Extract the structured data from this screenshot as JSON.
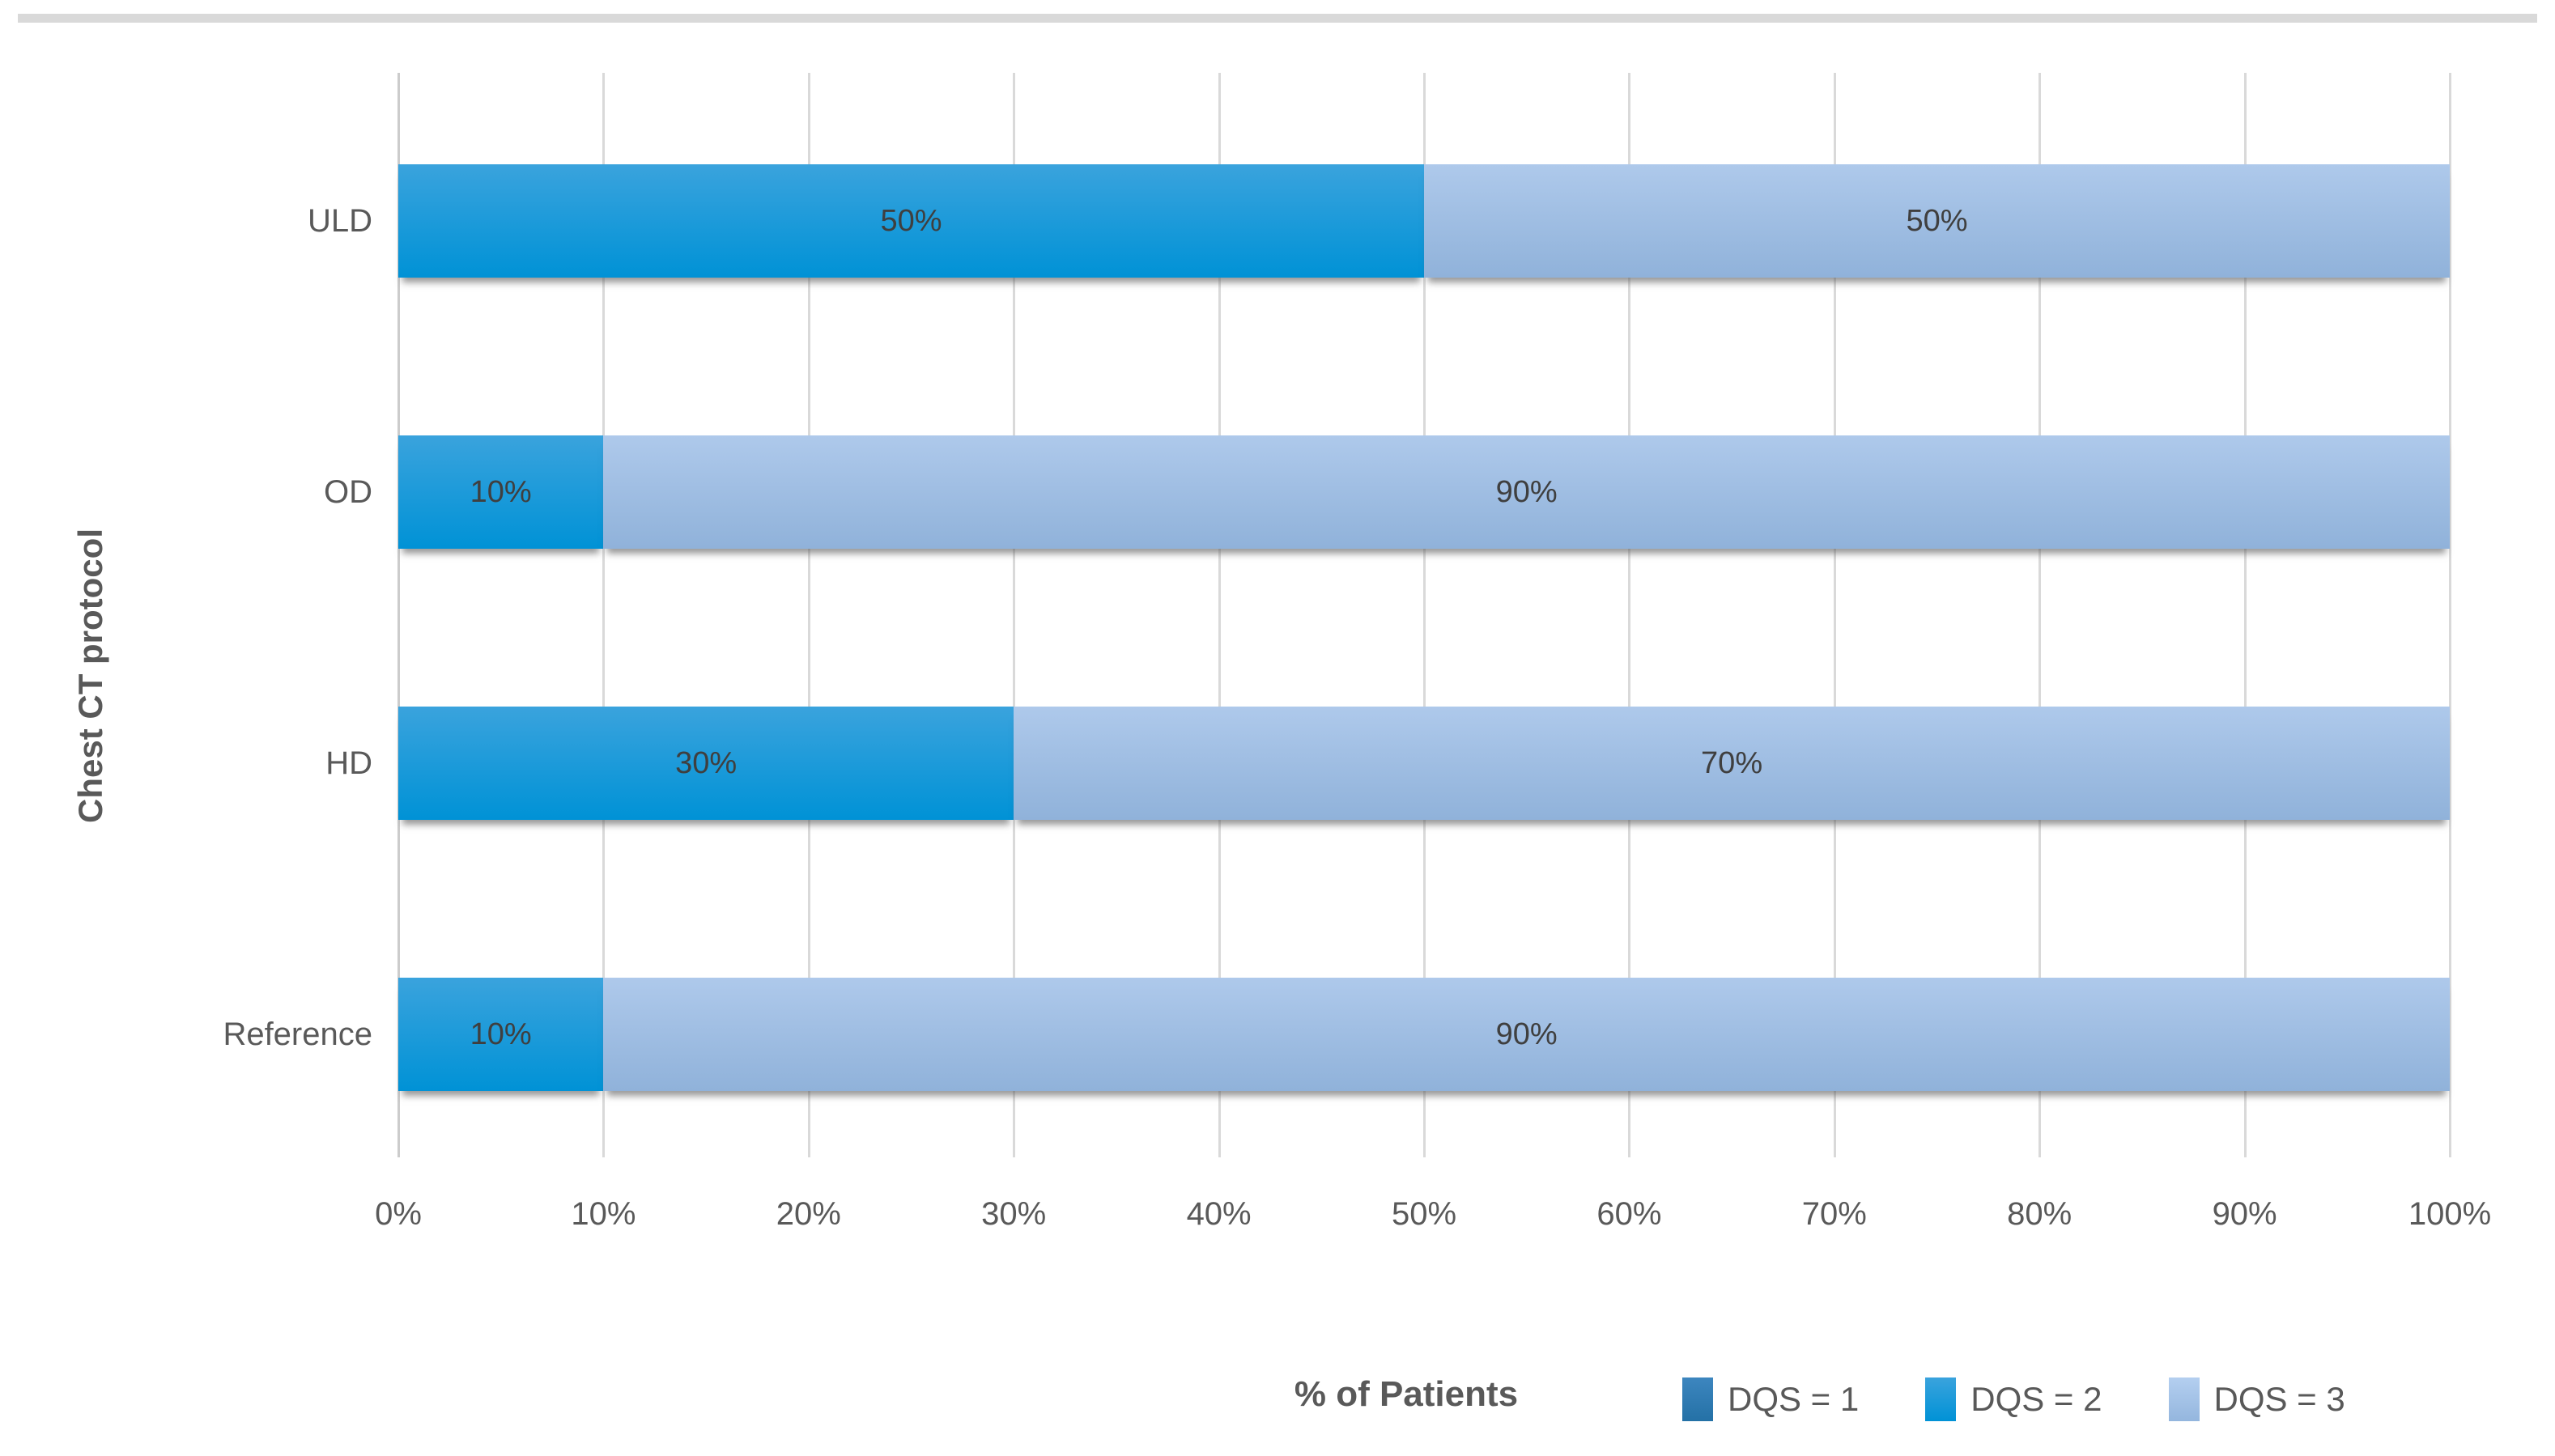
{
  "figure": {
    "background": "#ffffff",
    "top_rule_color": "#d9d9d9",
    "text_color": "#595959",
    "gridline_color": "#d9d9d9",
    "data_label_color": "#3f3f3f"
  },
  "chart_data": {
    "type": "bar",
    "orientation": "horizontal",
    "stacked": true,
    "title": "",
    "xlabel": "% of Patients",
    "ylabel": "Chest CT protocol",
    "xlim": [
      0,
      100
    ],
    "x_ticks": [
      "0%",
      "10%",
      "20%",
      "30%",
      "40%",
      "50%",
      "60%",
      "70%",
      "80%",
      "90%",
      "100%"
    ],
    "categories": [
      "ULD",
      "OD",
      "HD",
      "Reference"
    ],
    "series": [
      {
        "name": "DQS = 1",
        "color": "#2e7cb7",
        "values": [
          0,
          0,
          0,
          0
        ]
      },
      {
        "name": "DQS = 2",
        "color": "#1e9ad9",
        "values": [
          50,
          10,
          30,
          10
        ]
      },
      {
        "name": "DQS = 3",
        "color": "#a4c2e5",
        "values": [
          50,
          90,
          70,
          90
        ]
      }
    ],
    "data_labels": {
      "ULD": [
        "50%",
        "50%"
      ],
      "OD": [
        "10%",
        "90%"
      ],
      "HD": [
        "30%",
        "70%"
      ],
      "Reference": [
        "10%",
        "90%"
      ]
    },
    "grid": "vertical",
    "legend_position": "bottom-right",
    "legend": [
      "DQS = 1",
      "DQS = 2",
      "DQS = 3"
    ]
  }
}
